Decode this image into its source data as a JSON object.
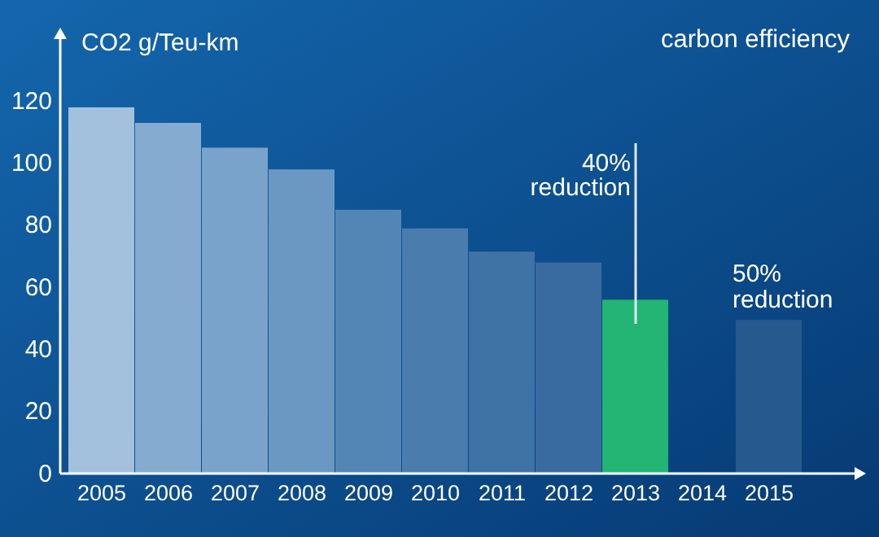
{
  "chart_data": {
    "type": "bar",
    "title": "carbon efficiency",
    "ylabel": "CO2 g/Teu-km",
    "categories": [
      "2005",
      "2006",
      "2007",
      "2008",
      "2009",
      "2010",
      "2011",
      "2012",
      "2013",
      "2014",
      "2015"
    ],
    "values": [
      118,
      113,
      105,
      98,
      85,
      79,
      71.5,
      68,
      56,
      null,
      49.5
    ],
    "colors": [
      "#a3c1dc",
      "#86abd0",
      "#7aa3cb",
      "#6b98c3",
      "#5486b5",
      "#4a7dae",
      "#3f72a5",
      "#3a6ba0",
      "#22b573",
      null,
      "#265a8f"
    ],
    "ylim": [
      0,
      140
    ],
    "yticks": [
      0,
      20,
      40,
      60,
      80,
      100,
      120
    ],
    "grid": false,
    "annotations": [
      "40% reduction",
      "50% reduction"
    ]
  }
}
